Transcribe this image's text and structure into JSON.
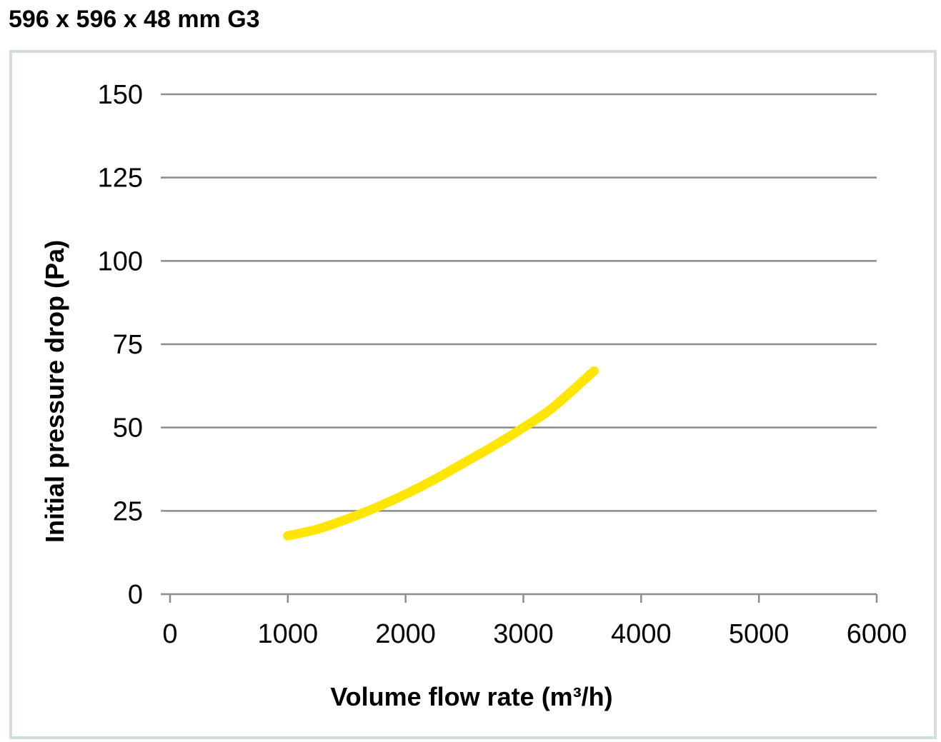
{
  "title": "596 x 596 x 48 mm G3",
  "chart_data": {
    "type": "line",
    "xlabel": "Volume flow rate (m³/h)",
    "ylabel": "Initial pressure drop (Pa)",
    "xlim": [
      0,
      6000
    ],
    "ylim": [
      0,
      150
    ],
    "x_ticks": [
      0,
      1000,
      2000,
      3000,
      4000,
      5000,
      6000
    ],
    "y_ticks": [
      0,
      25,
      50,
      75,
      100,
      125,
      150
    ],
    "grid": "horizontal",
    "series": [
      {
        "color": "#ffe600",
        "x": [
          1000,
          1250,
          1500,
          1750,
          2000,
          2250,
          2500,
          2750,
          3000,
          3250,
          3600
        ],
        "y": [
          17.5,
          19.5,
          22.5,
          26,
          30,
          34.5,
          39.5,
          44.5,
          50,
          56,
          67
        ]
      }
    ]
  }
}
